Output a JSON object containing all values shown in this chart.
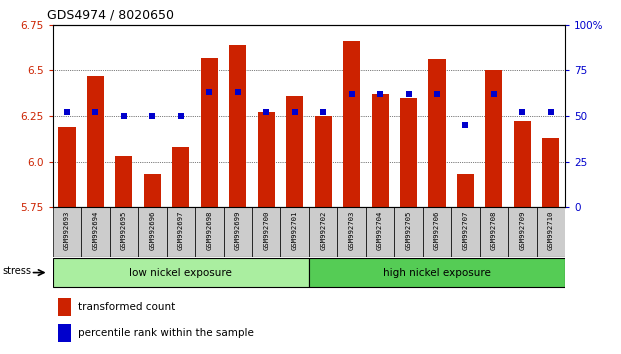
{
  "title": "GDS4974 / 8020650",
  "samples": [
    "GSM992693",
    "GSM992694",
    "GSM992695",
    "GSM992696",
    "GSM992697",
    "GSM992698",
    "GSM992699",
    "GSM992700",
    "GSM992701",
    "GSM992702",
    "GSM992703",
    "GSM992704",
    "GSM992705",
    "GSM992706",
    "GSM992707",
    "GSM992708",
    "GSM992709",
    "GSM992710"
  ],
  "red_values": [
    6.19,
    6.47,
    6.03,
    5.93,
    6.08,
    6.57,
    6.64,
    6.27,
    6.36,
    6.25,
    6.66,
    6.37,
    6.35,
    6.56,
    5.93,
    6.5,
    6.22,
    6.13
  ],
  "blue_values": [
    52,
    52,
    50,
    50,
    50,
    63,
    63,
    52,
    52,
    52,
    62,
    62,
    62,
    62,
    45,
    62,
    52,
    52
  ],
  "y_min": 5.75,
  "y_max": 6.75,
  "y_ticks": [
    5.75,
    6.0,
    6.25,
    6.5,
    6.75
  ],
  "y2_ticks": [
    0,
    25,
    50,
    75,
    100
  ],
  "group1_label": "low nickel exposure",
  "group2_label": "high nickel exposure",
  "group1_count": 9,
  "stress_label": "stress",
  "legend_red": "transformed count",
  "legend_blue": "percentile rank within the sample",
  "bar_color": "#cc2200",
  "dot_color": "#0000cc",
  "group1_color": "#aaeea0",
  "group2_color": "#55cc55",
  "bg_color": "#ffffff",
  "red_axis_color": "#cc2200",
  "blue_axis_color": "#0000cc",
  "grid_color": "#000000",
  "tick_label_bg": "#cccccc"
}
